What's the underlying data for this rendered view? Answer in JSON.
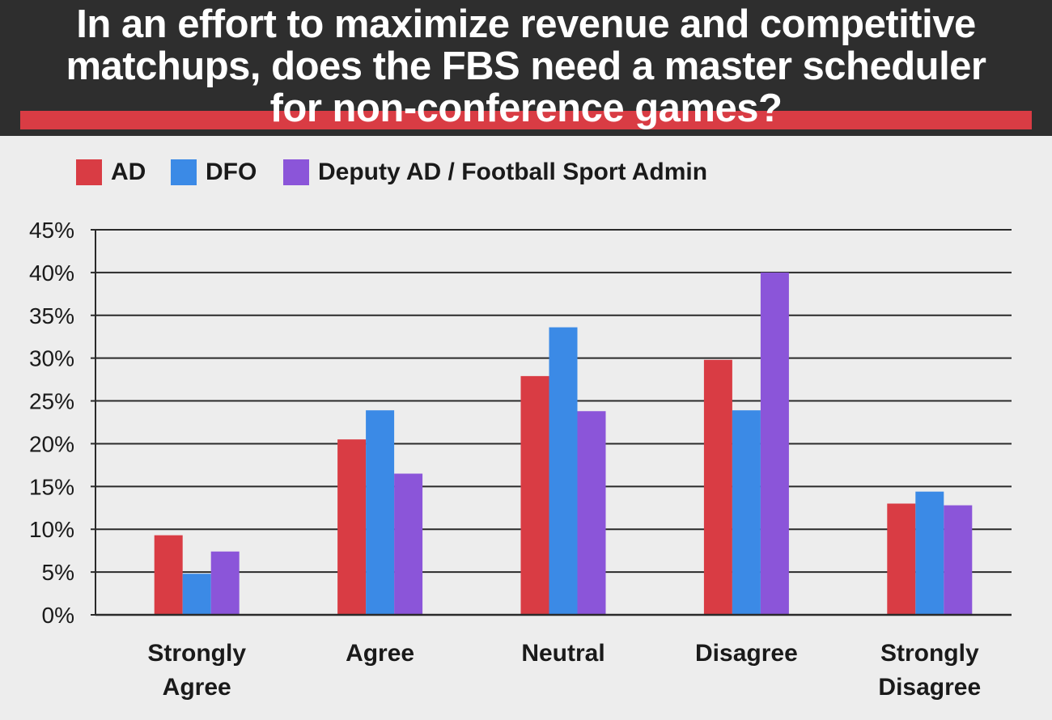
{
  "header": {
    "title_lines": [
      "In an effort to maximize revenue and competitive",
      "matchups, does the FBS need a master scheduler",
      "for non-conference games?"
    ]
  },
  "colors": {
    "header_bg": "#2e2e2e",
    "accent_red": "#d93c44",
    "page_bg": "#ededed"
  },
  "chart_data": {
    "type": "bar",
    "categories": [
      "Strongly\nAgree",
      "Agree",
      "Neutral",
      "Disagree",
      "Strongly\nDisagree"
    ],
    "series": [
      {
        "name": "AD",
        "color": "#d93c44",
        "values": [
          9.3,
          20.5,
          27.9,
          29.8,
          13.0
        ]
      },
      {
        "name": "DFO",
        "color": "#3b8ae6",
        "values": [
          4.8,
          23.9,
          33.6,
          23.9,
          14.4
        ]
      },
      {
        "name": "Deputy AD / Football Sport Admin",
        "color": "#8b55d9",
        "values": [
          7.4,
          16.5,
          23.8,
          40.0,
          12.8
        ]
      }
    ],
    "ylim": [
      0,
      45
    ],
    "yticks": [
      "0%",
      "5%",
      "10%",
      "15%",
      "20%",
      "25%",
      "30%",
      "35%",
      "40%",
      "45%"
    ],
    "grid": true,
    "legend": "top-left"
  }
}
